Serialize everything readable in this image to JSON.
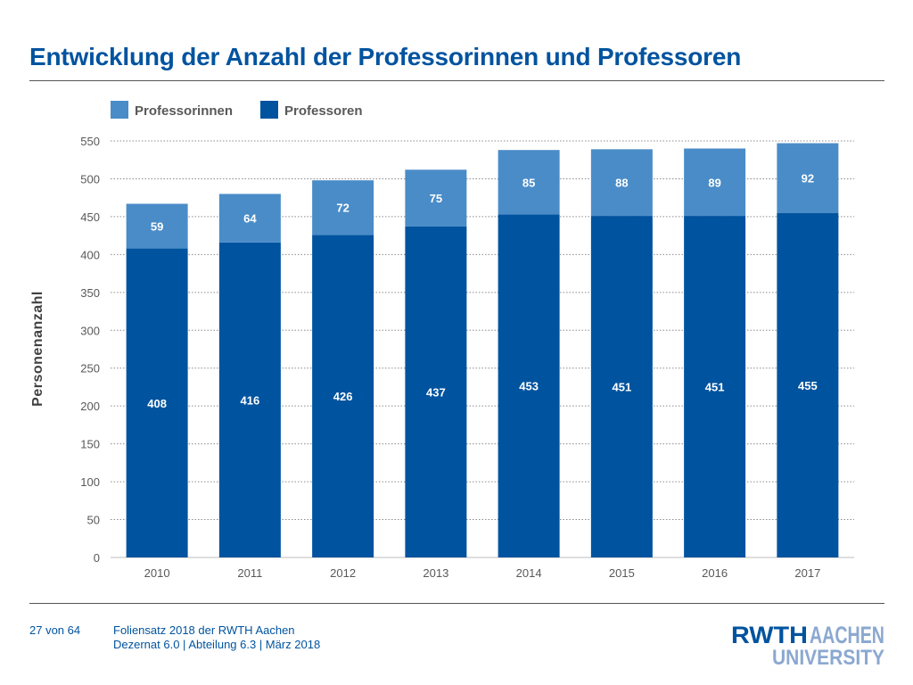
{
  "page": {
    "title": "Entwicklung der Anzahl der Professorinnen und Professoren",
    "page_number": "27 von 64",
    "source_line1": "Foliensatz 2018 der RWTH Aachen",
    "source_line2": "Dezernat 6.0 | Abteilung 6.3 | März 2018",
    "logo_line1_a": "RWTH",
    "logo_line1_b": "AACHEN",
    "logo_line2": "UNIVERSITY"
  },
  "colors": {
    "professoren": "#00539f",
    "professorinnen": "#4a8cc8",
    "title": "#00539f"
  },
  "chart_data": {
    "type": "bar",
    "stacked": true,
    "categories": [
      "2010",
      "2011",
      "2012",
      "2013",
      "2014",
      "2015",
      "2016",
      "2017"
    ],
    "series": [
      {
        "name": "Professoren",
        "values": [
          408,
          416,
          426,
          437,
          453,
          451,
          451,
          455
        ]
      },
      {
        "name": "Professorinnen",
        "values": [
          59,
          64,
          72,
          75,
          85,
          88,
          89,
          92
        ]
      }
    ],
    "legend_order": [
      "Professorinnen",
      "Professoren"
    ],
    "legend_position": "top-left",
    "xlabel": "",
    "ylabel": "Personenanzahl",
    "ylim": [
      0,
      550
    ],
    "yticks": [
      0,
      50,
      100,
      150,
      200,
      250,
      300,
      350,
      400,
      450,
      500,
      550
    ],
    "grid": "horizontal dotted",
    "data_labels": "inside bars, white"
  }
}
